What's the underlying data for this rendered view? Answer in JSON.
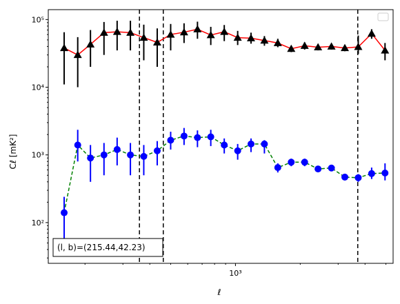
{
  "chart_data": {
    "type": "line",
    "title": "",
    "xlabel": "ℓ",
    "ylabel": "Cℓ  [mK²]",
    "xscale": "log",
    "yscale": "log",
    "xlim": [
      135,
      5400
    ],
    "ylim": [
      25,
      140000
    ],
    "grid": false,
    "legend": "top-right",
    "x_tick_labels": [
      "10³"
    ],
    "y_tick_labels": [
      "10²",
      "10³",
      "10⁴",
      "10⁵"
    ],
    "vlines": [
      358,
      462,
      3700
    ],
    "annotation": "(l, b)=(215.44,42.23)",
    "series": [
      {
        "color": "#ff0000",
        "marker": "triangle",
        "marker_color": "#000000",
        "linestyle": "solid",
        "x": [
          160,
          185,
          212,
          245,
          282,
          325,
          375,
          433,
          500,
          577,
          666,
          768,
          887,
          1024,
          1181,
          1363,
          1573,
          1816,
          2096,
          2419,
          2792,
          3222,
          3719,
          4292,
          4953
        ],
        "y": [
          38000,
          30000,
          43000,
          64000,
          66000,
          64000,
          54000,
          46000,
          60000,
          65000,
          72000,
          59000,
          66000,
          54000,
          53000,
          49000,
          45000,
          37000,
          41000,
          39000,
          40000,
          38000,
          39500,
          62000,
          35000
        ],
        "y_low": [
          11000,
          10000,
          20000,
          30000,
          35000,
          35000,
          25000,
          20000,
          35000,
          45000,
          52000,
          42000,
          48000,
          42000,
          44000,
          41000,
          39000,
          33000,
          36000,
          35000,
          36000,
          34000,
          31000,
          52000,
          25000
        ],
        "y_high": [
          65000,
          55000,
          70000,
          92000,
          96000,
          96000,
          84000,
          74000,
          86000,
          88000,
          93000,
          78000,
          83000,
          68000,
          64000,
          57000,
          52000,
          41000,
          46000,
          43000,
          44000,
          42000,
          58000,
          72000,
          45000
        ]
      },
      {
        "color": "#008000",
        "marker": "circle",
        "marker_color": "#0000ff",
        "linestyle": "dashed",
        "x": [
          160,
          185,
          212,
          245,
          282,
          325,
          375,
          433,
          500,
          577,
          666,
          768,
          887,
          1024,
          1181,
          1363,
          1573,
          1816,
          2096,
          2419,
          2792,
          3222,
          3719,
          4292,
          4953
        ],
        "y": [
          140,
          1400,
          900,
          1000,
          1200,
          1000,
          950,
          1150,
          1650,
          1900,
          1800,
          1850,
          1400,
          1150,
          1450,
          1450,
          650,
          780,
          780,
          620,
          640,
          470,
          460,
          530,
          540
        ],
        "y_low": [
          40,
          800,
          400,
          500,
          700,
          500,
          500,
          700,
          1200,
          1400,
          1300,
          1350,
          1050,
          850,
          1100,
          1050,
          550,
          680,
          680,
          560,
          580,
          420,
          400,
          440,
          420
        ],
        "y_high": [
          240,
          2350,
          1400,
          1500,
          1800,
          1500,
          1400,
          1600,
          2200,
          2500,
          2300,
          2350,
          1750,
          1450,
          1750,
          1650,
          750,
          880,
          880,
          680,
          700,
          520,
          520,
          650,
          750
        ]
      }
    ]
  }
}
